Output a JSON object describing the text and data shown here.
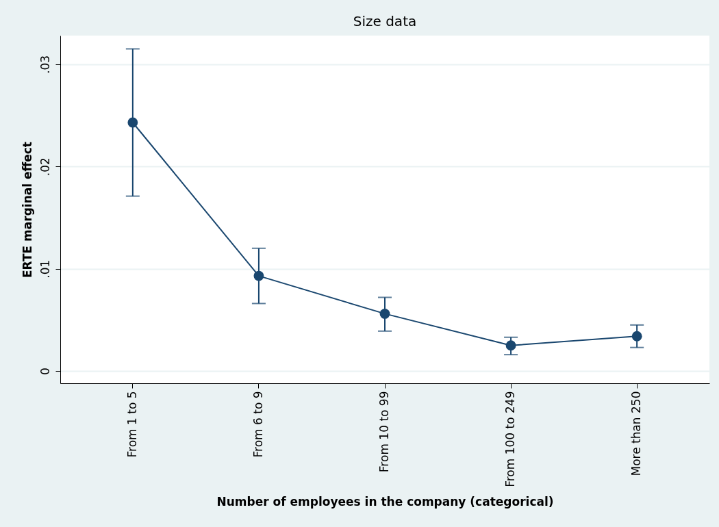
{
  "chart_data": {
    "type": "line",
    "title": "Size data",
    "xlabel": "Number of employees in the company (categorical)",
    "ylabel": "ERTE marginal effect",
    "categories": [
      "From 1 to 5",
      "From 6 to 9",
      "From 10 to 99",
      "From 100 to 249",
      "More than 250"
    ],
    "series": [
      {
        "color": "#1a476f",
        "values": [
          0.0243,
          0.0093,
          0.0056,
          0.0025,
          0.0034
        ],
        "errors": [
          [
            0.0171,
            0.0315
          ],
          [
            0.0066,
            0.012
          ],
          [
            0.0039,
            0.0072
          ],
          [
            0.0016,
            0.0033
          ],
          [
            0.0023,
            0.0045
          ]
        ]
      }
    ],
    "ylim": [
      -0.0012,
      0.0328
    ],
    "yticks": [
      {
        "value": 0,
        "label": "0"
      },
      {
        "value": 0.01,
        "label": ".01"
      },
      {
        "value": 0.02,
        "label": ".02"
      },
      {
        "value": 0.03,
        "label": ".03"
      }
    ],
    "grid": "y",
    "marker": "circle",
    "line_style": "solid"
  }
}
